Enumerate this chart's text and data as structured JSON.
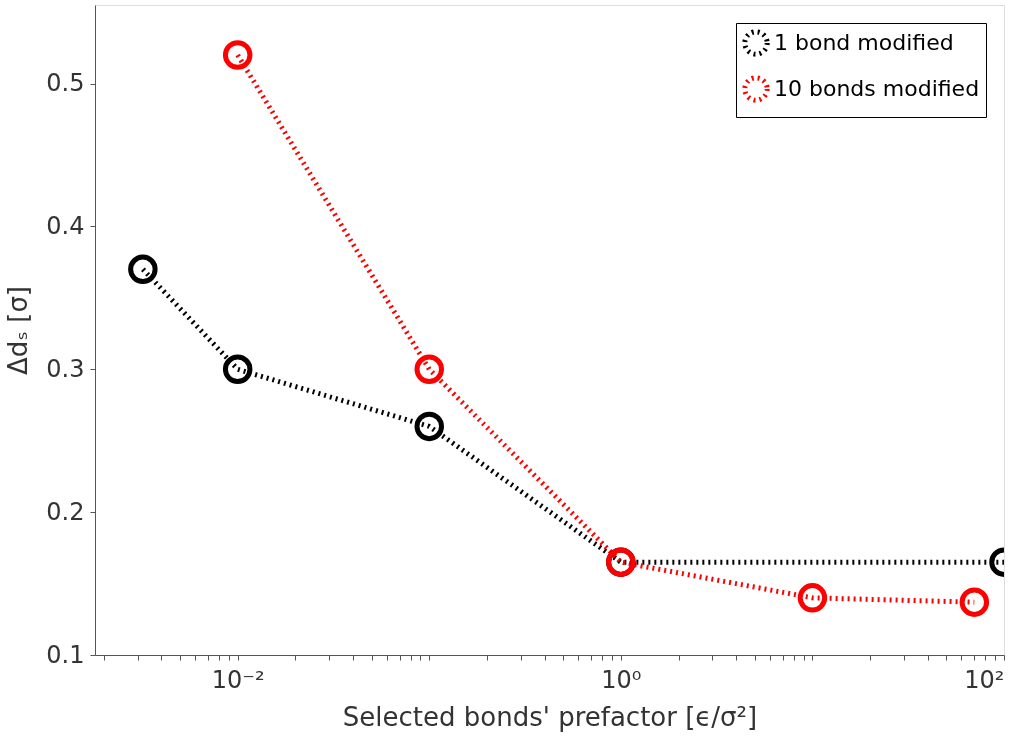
{
  "chart_data": {
    "type": "line",
    "xlabel": "Selected bonds' prefactor [ϵ/σ²]",
    "ylabel": "Δdₛ [σ]",
    "log": "x",
    "xlim": [
      0.0018,
      100
    ],
    "ylim": [
      0.1,
      0.555
    ],
    "xticks": [
      {
        "value": 0.002,
        "label": null
      },
      {
        "value": 0.003,
        "label": null
      },
      {
        "value": 0.004,
        "label": null
      },
      {
        "value": 0.005,
        "label": null
      },
      {
        "value": 0.006,
        "label": null
      },
      {
        "value": 0.007,
        "label": null
      },
      {
        "value": 0.008,
        "label": null
      },
      {
        "value": 0.009,
        "label": null
      },
      {
        "value": 0.01,
        "label": "10⁻²"
      },
      {
        "value": 0.02,
        "label": null
      },
      {
        "value": 0.03,
        "label": null
      },
      {
        "value": 0.04,
        "label": null
      },
      {
        "value": 0.05,
        "label": null
      },
      {
        "value": 0.06,
        "label": null
      },
      {
        "value": 0.07,
        "label": null
      },
      {
        "value": 0.08,
        "label": null
      },
      {
        "value": 0.09,
        "label": null
      },
      {
        "value": 0.1,
        "label": null
      },
      {
        "value": 0.2,
        "label": null
      },
      {
        "value": 0.3,
        "label": null
      },
      {
        "value": 0.4,
        "label": null
      },
      {
        "value": 0.5,
        "label": null
      },
      {
        "value": 0.6,
        "label": null
      },
      {
        "value": 0.7,
        "label": null
      },
      {
        "value": 0.8,
        "label": null
      },
      {
        "value": 0.9,
        "label": null
      },
      {
        "value": 1,
        "label": "10⁰"
      },
      {
        "value": 2,
        "label": null
      },
      {
        "value": 3,
        "label": null
      },
      {
        "value": 4,
        "label": null
      },
      {
        "value": 5,
        "label": null
      },
      {
        "value": 6,
        "label": null
      },
      {
        "value": 7,
        "label": null
      },
      {
        "value": 8,
        "label": null
      },
      {
        "value": 9,
        "label": null
      },
      {
        "value": 10,
        "label": null
      },
      {
        "value": 20,
        "label": null
      },
      {
        "value": 30,
        "label": null
      },
      {
        "value": 40,
        "label": null
      },
      {
        "value": 50,
        "label": null
      },
      {
        "value": 60,
        "label": null
      },
      {
        "value": 70,
        "label": null
      },
      {
        "value": 80,
        "label": null
      },
      {
        "value": 90,
        "label": null
      },
      {
        "value": 100,
        "label": "10²"
      }
    ],
    "yticks": [
      0.1,
      0.2,
      0.3,
      0.4,
      0.5
    ],
    "grid": false,
    "legend": "top right",
    "marker": "circle",
    "line_style": "dotted",
    "series": [
      {
        "name": "1 bond modified",
        "color": "#000000",
        "x": [
          0.0032,
          0.01,
          0.1,
          1,
          100
        ],
        "values": [
          0.37,
          0.3,
          0.26,
          0.165,
          0.165
        ]
      },
      {
        "name": "10 bonds modified",
        "color": "#ff0000",
        "x": [
          0.01,
          0.1,
          1,
          10,
          70
        ],
        "values": [
          0.52,
          0.3,
          0.165,
          0.14,
          0.137
        ]
      }
    ]
  }
}
